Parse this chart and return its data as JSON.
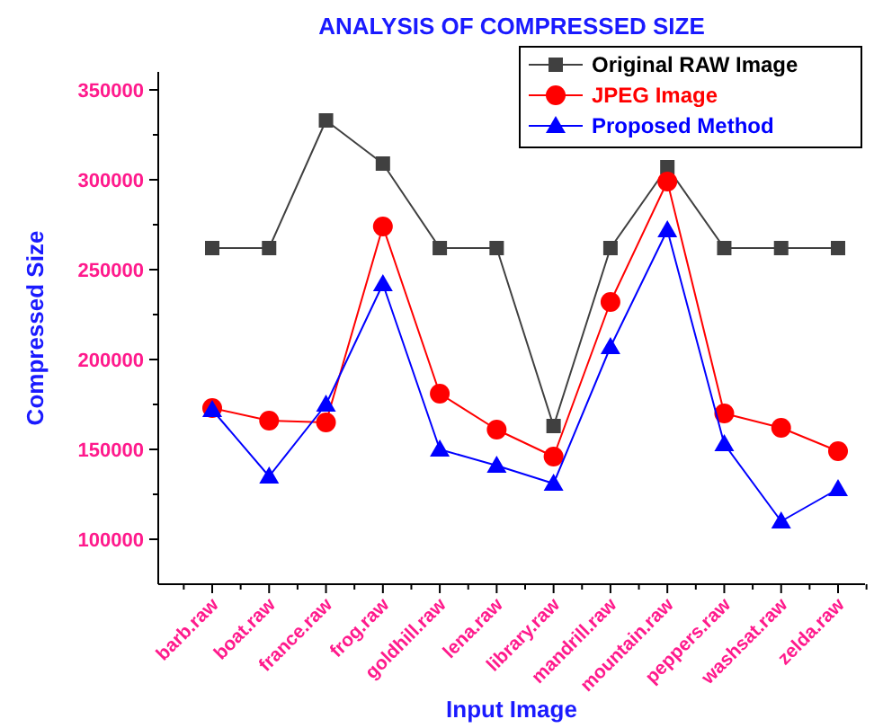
{
  "chart_data": {
    "type": "line",
    "title": "ANALYSIS OF COMPRESSED SIZE",
    "xlabel": "Input Image",
    "ylabel": "Compressed Size",
    "categories": [
      "barb.raw",
      "boat.raw",
      "france.raw",
      "frog.raw",
      "goldhill.raw",
      "lena.raw",
      "library.raw",
      "mandrill.raw",
      "mountain.raw",
      "peppers.raw",
      "washsat.raw",
      "zelda.raw"
    ],
    "series": [
      {
        "name": "Original RAW Image",
        "color": "#404040",
        "marker": "square",
        "values": [
          262000,
          262000,
          333000,
          309000,
          262000,
          262000,
          163000,
          262000,
          307000,
          262000,
          262000,
          262000
        ]
      },
      {
        "name": "JPEG Image",
        "color": "#ff0000",
        "marker": "circle",
        "values": [
          173000,
          166000,
          165000,
          274000,
          181000,
          161000,
          146000,
          232000,
          299000,
          170000,
          162000,
          149000
        ]
      },
      {
        "name": "Proposed Method",
        "color": "#0000ff",
        "marker": "triangle",
        "values": [
          172000,
          135000,
          175000,
          242000,
          150000,
          141000,
          131000,
          207000,
          272000,
          153000,
          110000,
          128000
        ]
      }
    ],
    "ylim": [
      75000,
      360000
    ],
    "yticks": [
      100000,
      150000,
      200000,
      250000,
      300000,
      350000
    ],
    "grid": false,
    "legend": "top right"
  }
}
